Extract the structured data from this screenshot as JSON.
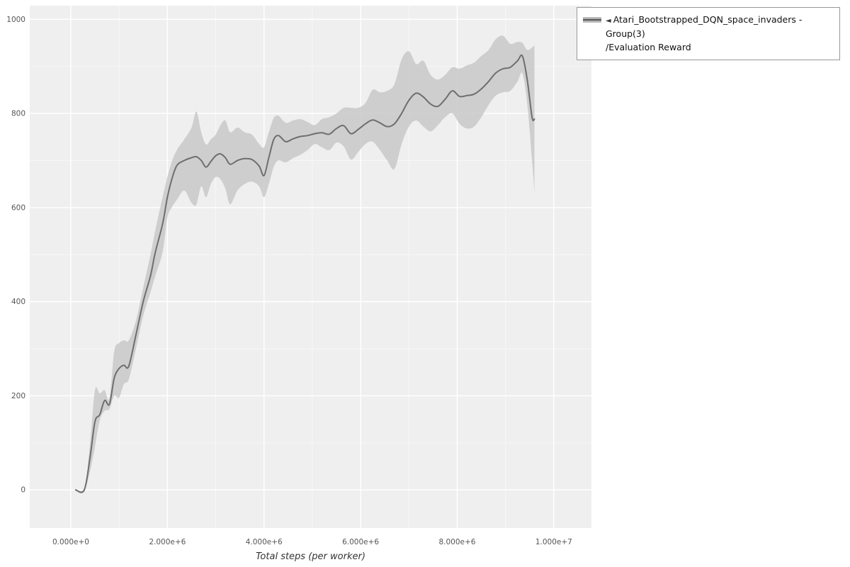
{
  "legend": {
    "collapse_icon": "◄",
    "series_label": "Atari_Bootstrapped_DQN_space_invaders - Group(3)",
    "metric_label": "/Evaluation Reward"
  },
  "colors": {
    "plot_bg": "#efefef",
    "grid_major": "#ffffff",
    "grid_minor": "#f7f7f7",
    "line": "#6e6e6e",
    "band": "#c5c5c5",
    "band_opacity": 0.8,
    "tick_label": "#555555",
    "axis_title": "#333333",
    "legend_border": "#999999"
  },
  "chart_data": {
    "type": "line",
    "title": "",
    "xlabel": "Total steps (per worker)",
    "ylabel": "",
    "grid": true,
    "legend_position": "top-right",
    "xlim": [
      -850000,
      10780000
    ],
    "ylim": [
      -81,
      1029
    ],
    "x_ticks": {
      "values": [
        0,
        2000000,
        4000000,
        6000000,
        8000000,
        10000000
      ],
      "labels": [
        "0.000e+0",
        "2.000e+6",
        "4.000e+6",
        "6.000e+6",
        "8.000e+6",
        "1.000e+7"
      ]
    },
    "y_ticks": {
      "values": [
        0,
        200,
        400,
        600,
        800,
        1000
      ],
      "labels": [
        "0",
        "200",
        "400",
        "600",
        "800",
        "1000"
      ]
    },
    "series": [
      {
        "name": "Atari_Bootstrapped_DQN_space_invaders - Group(3)/Evaluation Reward",
        "x": [
          100000,
          280000,
          400000,
          500000,
          600000,
          700000,
          800000,
          900000,
          1000000,
          1100000,
          1200000,
          1350000,
          1500000,
          1650000,
          1750000,
          1900000,
          2000000,
          2100000,
          2200000,
          2350000,
          2500000,
          2600000,
          2700000,
          2800000,
          2900000,
          3000000,
          3100000,
          3200000,
          3300000,
          3450000,
          3600000,
          3750000,
          3900000,
          4000000,
          4100000,
          4200000,
          4300000,
          4450000,
          4600000,
          4750000,
          4900000,
          5050000,
          5200000,
          5350000,
          5500000,
          5650000,
          5800000,
          5950000,
          6100000,
          6250000,
          6400000,
          6550000,
          6700000,
          6850000,
          7000000,
          7150000,
          7300000,
          7450000,
          7600000,
          7750000,
          7900000,
          8050000,
          8200000,
          8350000,
          8500000,
          8650000,
          8800000,
          8950000,
          9100000,
          9250000,
          9350000,
          9450000,
          9550000,
          9600000
        ],
        "mean": [
          0,
          0,
          70,
          145,
          160,
          190,
          182,
          238,
          258,
          265,
          263,
          330,
          400,
          455,
          505,
          565,
          622,
          663,
          690,
          700,
          706,
          708,
          700,
          686,
          698,
          710,
          714,
          706,
          692,
          700,
          704,
          702,
          688,
          668,
          706,
          744,
          753,
          740,
          746,
          751,
          753,
          757,
          759,
          756,
          768,
          774,
          757,
          766,
          778,
          786,
          780,
          772,
          778,
          800,
          828,
          843,
          835,
          820,
          815,
          830,
          848,
          836,
          838,
          841,
          852,
          868,
          886,
          895,
          898,
          912,
          922,
          872,
          792,
          788
        ],
        "lower": [
          0,
          0,
          40,
          92,
          148,
          168,
          172,
          200,
          196,
          225,
          235,
          300,
          370,
          420,
          455,
          505,
          578,
          602,
          617,
          636,
          610,
          606,
          645,
          622,
          650,
          665,
          660,
          640,
          607,
          636,
          650,
          655,
          645,
          622,
          650,
          686,
          700,
          696,
          705,
          712,
          722,
          735,
          728,
          722,
          738,
          730,
          702,
          718,
          735,
          740,
          722,
          700,
          682,
          735,
          772,
          785,
          772,
          762,
          775,
          792,
          800,
          778,
          768,
          772,
          792,
          818,
          838,
          845,
          848,
          868,
          885,
          820,
          700,
          632
        ],
        "upper": [
          0,
          0,
          100,
          212,
          205,
          212,
          195,
          295,
          312,
          318,
          318,
          360,
          430,
          500,
          552,
          622,
          665,
          700,
          723,
          745,
          770,
          804,
          760,
          734,
          745,
          755,
          775,
          785,
          760,
          770,
          760,
          755,
          735,
          728,
          760,
          790,
          795,
          780,
          785,
          788,
          782,
          775,
          788,
          792,
          800,
          812,
          812,
          812,
          822,
          850,
          845,
          848,
          862,
          915,
          932,
          905,
          912,
          882,
          872,
          882,
          898,
          895,
          902,
          908,
          922,
          935,
          958,
          965,
          948,
          952,
          950,
          935,
          940,
          945
        ]
      }
    ]
  }
}
